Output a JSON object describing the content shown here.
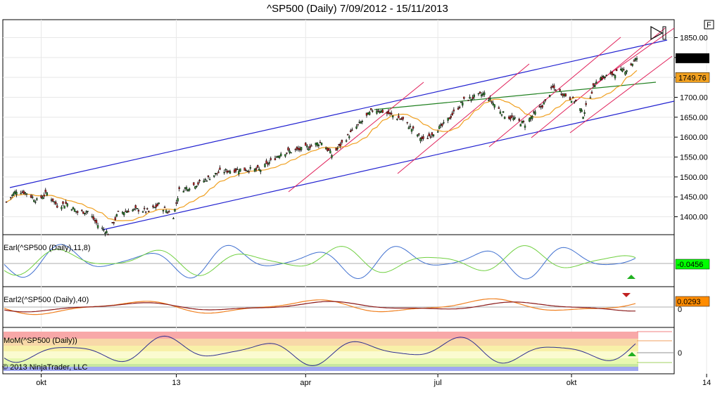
{
  "chart_data": {
    "type": "candlestick",
    "title": "^SP500 (Daily)  7/09/2012 - 15/11/2013",
    "x_ticks": [
      "okt",
      "13",
      "apr",
      "jul",
      "okt",
      "14"
    ],
    "y_ticks": [
      1400,
      1450,
      1500,
      1550,
      1600,
      1650,
      1700,
      1750,
      1800,
      1850
    ],
    "y_tick_labels": [
      "1400.00",
      "1450.00",
      "1500.00",
      "1550.00",
      "1600.00",
      "1650.00",
      "1700.00",
      "1750.00",
      "1800.00",
      "1850.00"
    ],
    "ylim": [
      1355,
      1895
    ],
    "last_price": "1798.18",
    "ma_value": "1749.76",
    "price_close_series": [
      {
        "x": "2012-09-07",
        "y": 1437
      },
      {
        "x": "2012-09-14",
        "y": 1466
      },
      {
        "x": "2012-09-21",
        "y": 1460
      },
      {
        "x": "2012-09-28",
        "y": 1440
      },
      {
        "x": "2012-10-05",
        "y": 1460
      },
      {
        "x": "2012-10-12",
        "y": 1428
      },
      {
        "x": "2012-10-19",
        "y": 1433
      },
      {
        "x": "2012-10-26",
        "y": 1411
      },
      {
        "x": "2012-11-02",
        "y": 1414
      },
      {
        "x": "2012-11-09",
        "y": 1379
      },
      {
        "x": "2012-11-16",
        "y": 1359
      },
      {
        "x": "2012-11-23",
        "y": 1409
      },
      {
        "x": "2012-11-30",
        "y": 1416
      },
      {
        "x": "2012-12-07",
        "y": 1418
      },
      {
        "x": "2012-12-14",
        "y": 1413
      },
      {
        "x": "2012-12-21",
        "y": 1430
      },
      {
        "x": "2012-12-31",
        "y": 1402
      },
      {
        "x": "2013-01-04",
        "y": 1466
      },
      {
        "x": "2013-01-18",
        "y": 1485
      },
      {
        "x": "2013-02-01",
        "y": 1513
      },
      {
        "x": "2013-02-15",
        "y": 1519
      },
      {
        "x": "2013-03-01",
        "y": 1518
      },
      {
        "x": "2013-03-15",
        "y": 1560
      },
      {
        "x": "2013-03-29",
        "y": 1569
      },
      {
        "x": "2013-04-12",
        "y": 1588
      },
      {
        "x": "2013-04-19",
        "y": 1555
      },
      {
        "x": "2013-05-03",
        "y": 1614
      },
      {
        "x": "2013-05-17",
        "y": 1667
      },
      {
        "x": "2013-05-21",
        "y": 1669
      },
      {
        "x": "2013-06-07",
        "y": 1643
      },
      {
        "x": "2013-06-21",
        "y": 1592
      },
      {
        "x": "2013-07-05",
        "y": 1631
      },
      {
        "x": "2013-07-19",
        "y": 1692
      },
      {
        "x": "2013-08-02",
        "y": 1709
      },
      {
        "x": "2013-08-16",
        "y": 1655
      },
      {
        "x": "2013-08-30",
        "y": 1633
      },
      {
        "x": "2013-09-13",
        "y": 1688
      },
      {
        "x": "2013-09-18",
        "y": 1725
      },
      {
        "x": "2013-10-04",
        "y": 1690
      },
      {
        "x": "2013-10-09",
        "y": 1656
      },
      {
        "x": "2013-10-18",
        "y": 1744
      },
      {
        "x": "2013-11-01",
        "y": 1762
      },
      {
        "x": "2013-11-08",
        "y": 1770
      },
      {
        "x": "2013-11-15",
        "y": 1798
      }
    ],
    "indicators": [
      {
        "label": "Earl(^SP500 (Daily),11,8)",
        "value": "-0.0456",
        "value_color": "#00ff00"
      },
      {
        "label": "Earl2(^SP500 (Daily),40)",
        "value": "0.0293",
        "value_color": "#ff8c00",
        "zero_label": "0"
      },
      {
        "label": "MoM(^SP500 (Daily))",
        "zero_label": "0"
      }
    ],
    "copyright": "© 2013 NinjaTrader, LLC",
    "top_right_button": "F"
  }
}
